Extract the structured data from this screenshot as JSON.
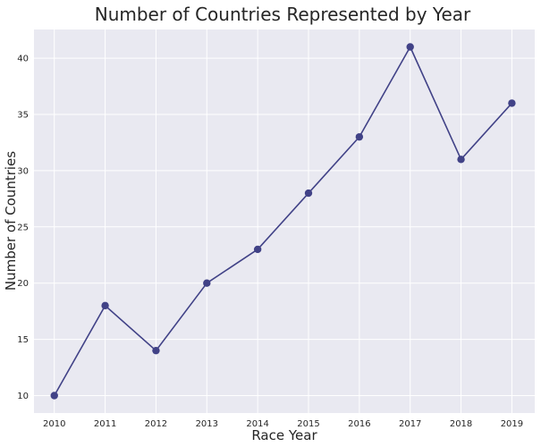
{
  "colors": {
    "plot_background": "#e9e9f1",
    "grid": "#ffffff",
    "series": "#414287",
    "text": "#262626"
  },
  "chart_data": {
    "type": "line",
    "title": "Number of Countries Represented by Year",
    "xlabel": "Race Year",
    "ylabel": "Number of Countries",
    "x": [
      2010,
      2011,
      2012,
      2013,
      2014,
      2015,
      2016,
      2017,
      2018,
      2019
    ],
    "x_tick_labels": [
      "2010",
      "2011",
      "2012",
      "2013",
      "2014",
      "2015",
      "2016",
      "2017",
      "2018",
      "2019"
    ],
    "y": [
      10,
      18,
      14,
      20,
      23,
      28,
      33,
      41,
      31,
      36
    ],
    "y_ticks": [
      10,
      15,
      20,
      25,
      30,
      35,
      40
    ],
    "y_tick_labels": [
      "10",
      "15",
      "20",
      "25",
      "30",
      "35",
      "40"
    ],
    "xlim": [
      2009.6,
      2019.45
    ],
    "ylim": [
      8.45,
      42.55
    ],
    "grid": true,
    "legend": false,
    "marker": "circle"
  }
}
